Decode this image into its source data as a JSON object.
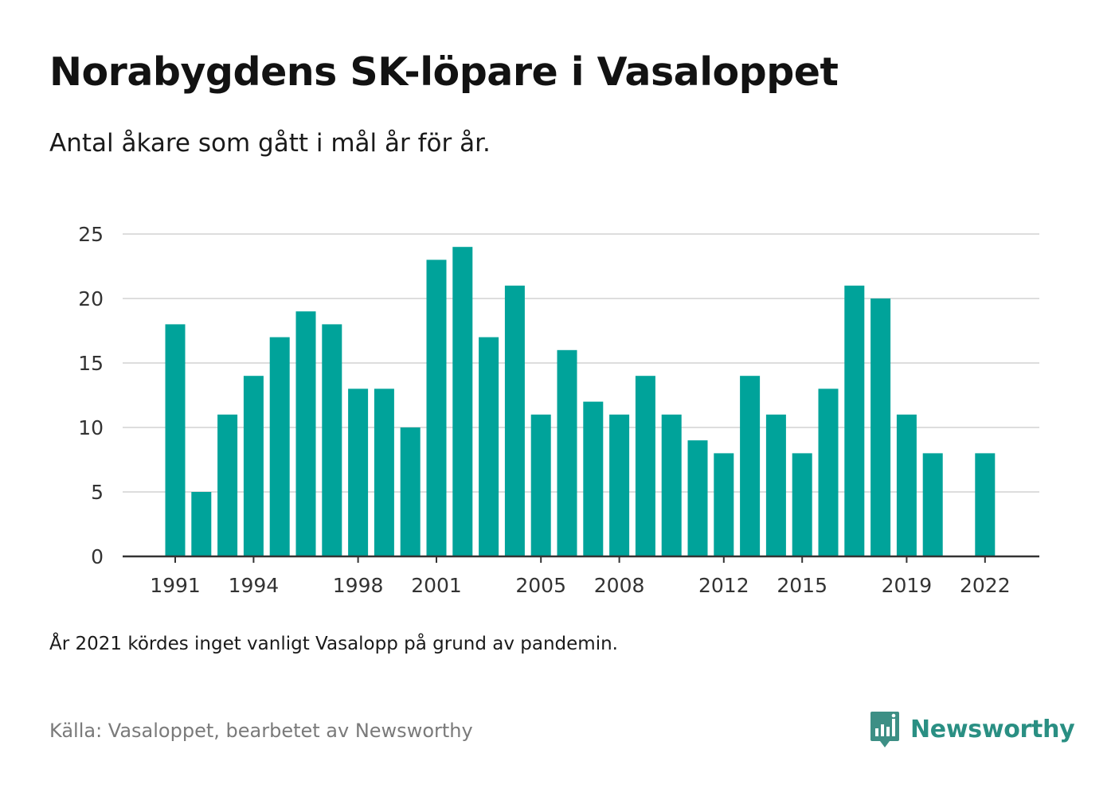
{
  "title": "Norabygdens SK-löpare i Vasaloppet",
  "subtitle": "Antal åkare som gått i mål år för år.",
  "note": "År 2021 kördes inget vanligt Vasalopp på grund av pandemin.",
  "source": "Källa: Vasaloppet, bearbetet av Newsworthy",
  "brand": {
    "name": "Newsworthy",
    "icon": "newsworthy-logo-icon",
    "color": "#2a8f83"
  },
  "colors": {
    "bar": "#00a39a",
    "grid": "#dddddd",
    "axis": "#333333"
  },
  "chart_data": {
    "type": "bar",
    "title": "Norabygdens SK-löpare i Vasaloppet",
    "xlabel": "",
    "ylabel": "",
    "ylim": [
      0,
      25
    ],
    "yticks": [
      0,
      5,
      10,
      15,
      20,
      25
    ],
    "xticks": [
      1991,
      1994,
      1998,
      2001,
      2005,
      2008,
      2012,
      2015,
      2019,
      2022
    ],
    "grid": true,
    "categories": [
      1991,
      1992,
      1993,
      1994,
      1995,
      1996,
      1997,
      1998,
      1999,
      2000,
      2001,
      2002,
      2003,
      2004,
      2005,
      2006,
      2007,
      2008,
      2009,
      2010,
      2011,
      2012,
      2013,
      2014,
      2015,
      2016,
      2017,
      2018,
      2019,
      2020,
      2021,
      2022
    ],
    "values": [
      18,
      5,
      11,
      14,
      17,
      19,
      18,
      13,
      13,
      10,
      23,
      24,
      17,
      21,
      11,
      16,
      12,
      11,
      14,
      11,
      9,
      8,
      14,
      11,
      8,
      13,
      21,
      20,
      11,
      8,
      null,
      8
    ]
  }
}
